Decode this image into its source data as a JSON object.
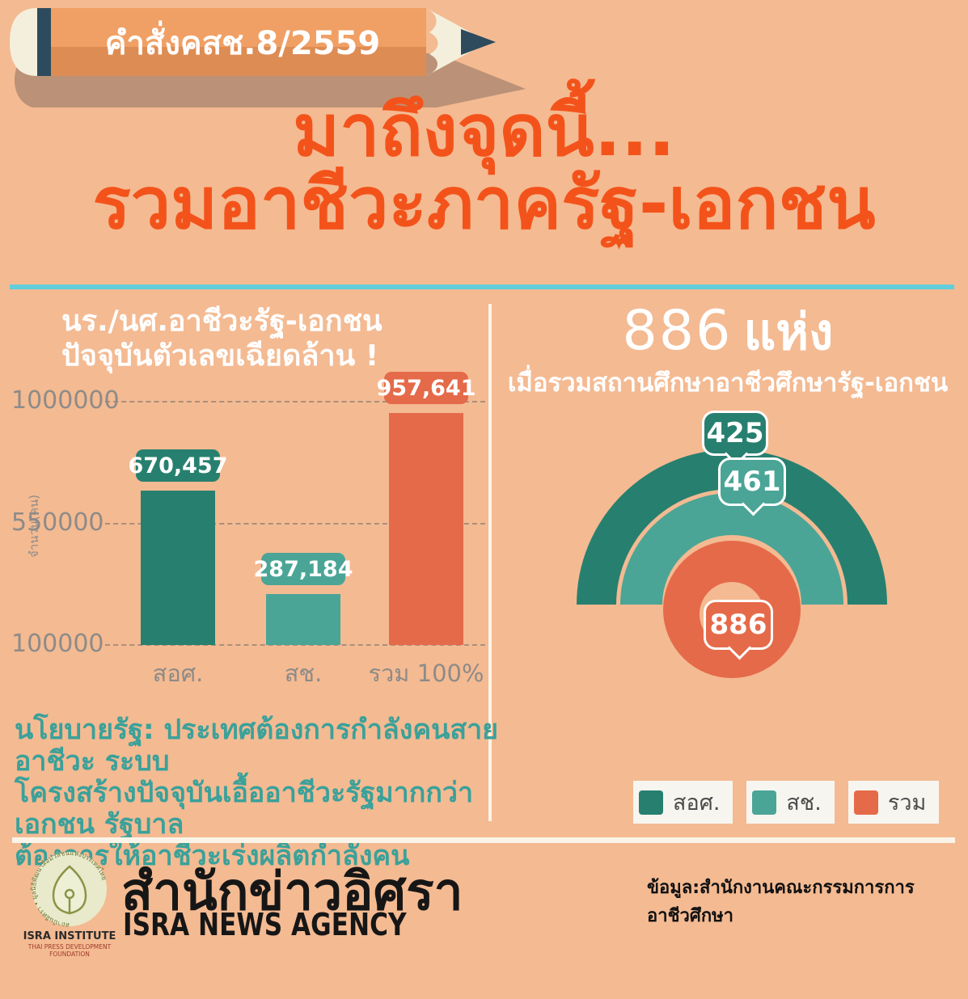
{
  "colors": {
    "background": "#f4ba92",
    "accent_title": "#f3531a",
    "cyan_rule": "#62cedb",
    "teal_dark": "#27806f",
    "teal_mid": "#4aa596",
    "orange": "#e56a49",
    "axis_gray": "#8d8b88",
    "policy_teal": "#3aa19a",
    "pencil_body": "#f0a065",
    "pencil_navy": "#2d4b5c",
    "cream": "#f4efdc"
  },
  "pencil_badge": {
    "label": "คำสั่งคสช.8/2559"
  },
  "title": {
    "line1": "มาถึงจุดนี้...",
    "line2": "รวมอาชีวะภาครัฐ-เอกชน"
  },
  "left_panel": {
    "heading_line1": "นร./นศ.อาชีวะรัฐ-เอกชน",
    "heading_line2": "ปัจจุบันตัวเลขเฉียดล้าน !"
  },
  "right_panel": {
    "headline_number": "886",
    "headline_unit": "แห่ง",
    "subtitle": "เมื่อรวมสถานศึกษาอาชีวศึกษารัฐ-เอกชน"
  },
  "policy_note": {
    "line1": "นโยบายรัฐ: ประเทศต้องการกำลังคนสายอาชีวะ ระบบ",
    "line2": "โครงสร้างปัจจุบันเอื้ออาชีวะรัฐมากกว่าเอกชน รัฐบาล",
    "line3": "ต้องการให้อาชีวะเร่งผลิตกำลังคน"
  },
  "footer": {
    "logo_rim_text": "สถาบันอิศรา • มูลนิธิพัฒนาสื่อมวลชนแห่งประเทศไทย",
    "logo_line1": "ISRA INSTITUTE",
    "logo_line2": "THAI PRESS DEVELOPMENT",
    "logo_line3": "FOUNDATION",
    "agency_thai": "สำนักข่าวอิศรา",
    "agency_en": "ISRA NEWS AGENCY",
    "source": "ข้อมูล:สำนักงานคณะกรรมการการอาชีวศึกษา"
  },
  "chart_data": [
    {
      "type": "bar",
      "title": "นร./นศ.อาชีวะรัฐ-เอกชน ปัจจุบันตัวเลขเฉียดล้าน!",
      "ylabel": "จำนวน(คน)",
      "categories": [
        "สอศ.",
        "สช.",
        "รวม 100%"
      ],
      "values": [
        670457,
        287184,
        957641
      ],
      "value_labels": [
        "670,457",
        "287,184",
        "957,641"
      ],
      "bar_colors": [
        "#27806f",
        "#4aa596",
        "#e56a49"
      ],
      "yticks": [
        {
          "value": 1000000,
          "label": "1000000"
        },
        {
          "value": 550000,
          "label": "550000"
        },
        {
          "value": 100000,
          "label": "100000"
        }
      ],
      "ylim": [
        100000,
        1000000
      ],
      "grid": "horizontal dashed"
    },
    {
      "type": "nested_semicircle_gauge",
      "title": "886 แห่ง",
      "subtitle": "เมื่อรวมสถานศึกษาอาชีวศึกษารัฐ-เอกชน",
      "series": [
        {
          "name": "สอศ.",
          "value": 425,
          "color": "#27806f"
        },
        {
          "name": "สช.",
          "value": 461,
          "color": "#4aa596"
        },
        {
          "name": "รวม",
          "value": 886,
          "color": "#e56a49"
        }
      ],
      "legend_position": "bottom"
    }
  ]
}
